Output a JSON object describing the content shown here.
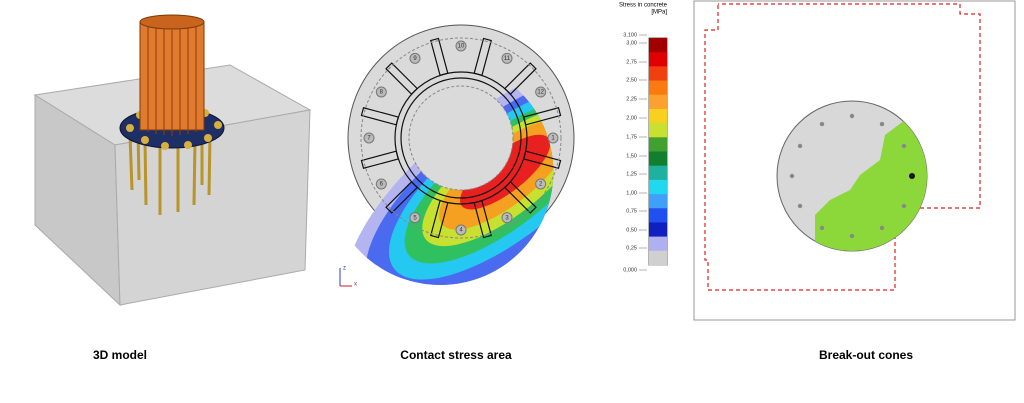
{
  "captions": [
    "3D model",
    "Contact stress area",
    "Break-out cones"
  ],
  "legend": {
    "title": "Stress in concrete",
    "unit": "[MPa]",
    "ticks": [
      "3,100",
      "3,00",
      "2,75",
      "2,50",
      "2,25",
      "2,00",
      "1,75",
      "1,50",
      "1,25",
      "1,00",
      "0,75",
      "0,50",
      "0,25",
      "0,000"
    ]
  },
  "anchors": [
    "1",
    "2",
    "3",
    "4",
    "5",
    "6",
    "7",
    "8",
    "9",
    "10",
    "11",
    "12"
  ],
  "axes": {
    "z": "z",
    "x": "x"
  }
}
